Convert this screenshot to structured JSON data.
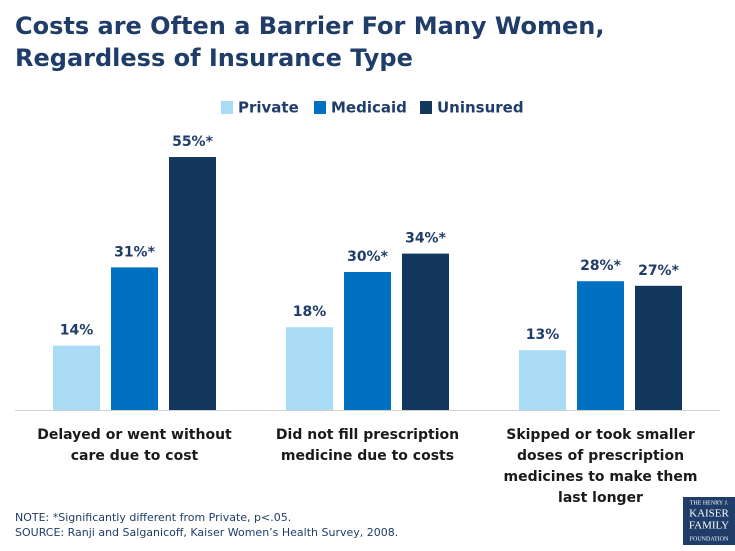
{
  "chart_data": {
    "type": "bar",
    "title": "Costs are Often a Barrier For Many Women, Regardless of Insurance Type",
    "categories": [
      "Delayed or went without care due to cost",
      "Did not fill prescription medicine due to costs",
      "Skipped or took smaller doses of prescription medicines to make them last longer"
    ],
    "series": [
      {
        "name": "Private",
        "color": "#a9dcf4",
        "values": [
          14,
          18,
          13
        ],
        "value_labels": [
          "14%",
          "18%",
          "13%"
        ]
      },
      {
        "name": "Medicaid",
        "color": "#0071c1",
        "values": [
          31,
          30,
          28
        ],
        "value_labels": [
          "31%*",
          "30%*",
          "28%*"
        ]
      },
      {
        "name": "Uninsured",
        "color": "#14375e",
        "values": [
          55,
          34,
          27
        ],
        "value_labels": [
          "55%*",
          "34%*",
          "27%*"
        ]
      }
    ],
    "legend": "top",
    "note": "NOTE: *Significantly different from Private, p<.05.",
    "source": "SOURCE: Ranji and Salganicoff, Kaiser Women’s Health Survey, 2008.",
    "logo": [
      "THE HENRY J.",
      "KAISER",
      "FAMILY",
      "FOUNDATION"
    ]
  }
}
